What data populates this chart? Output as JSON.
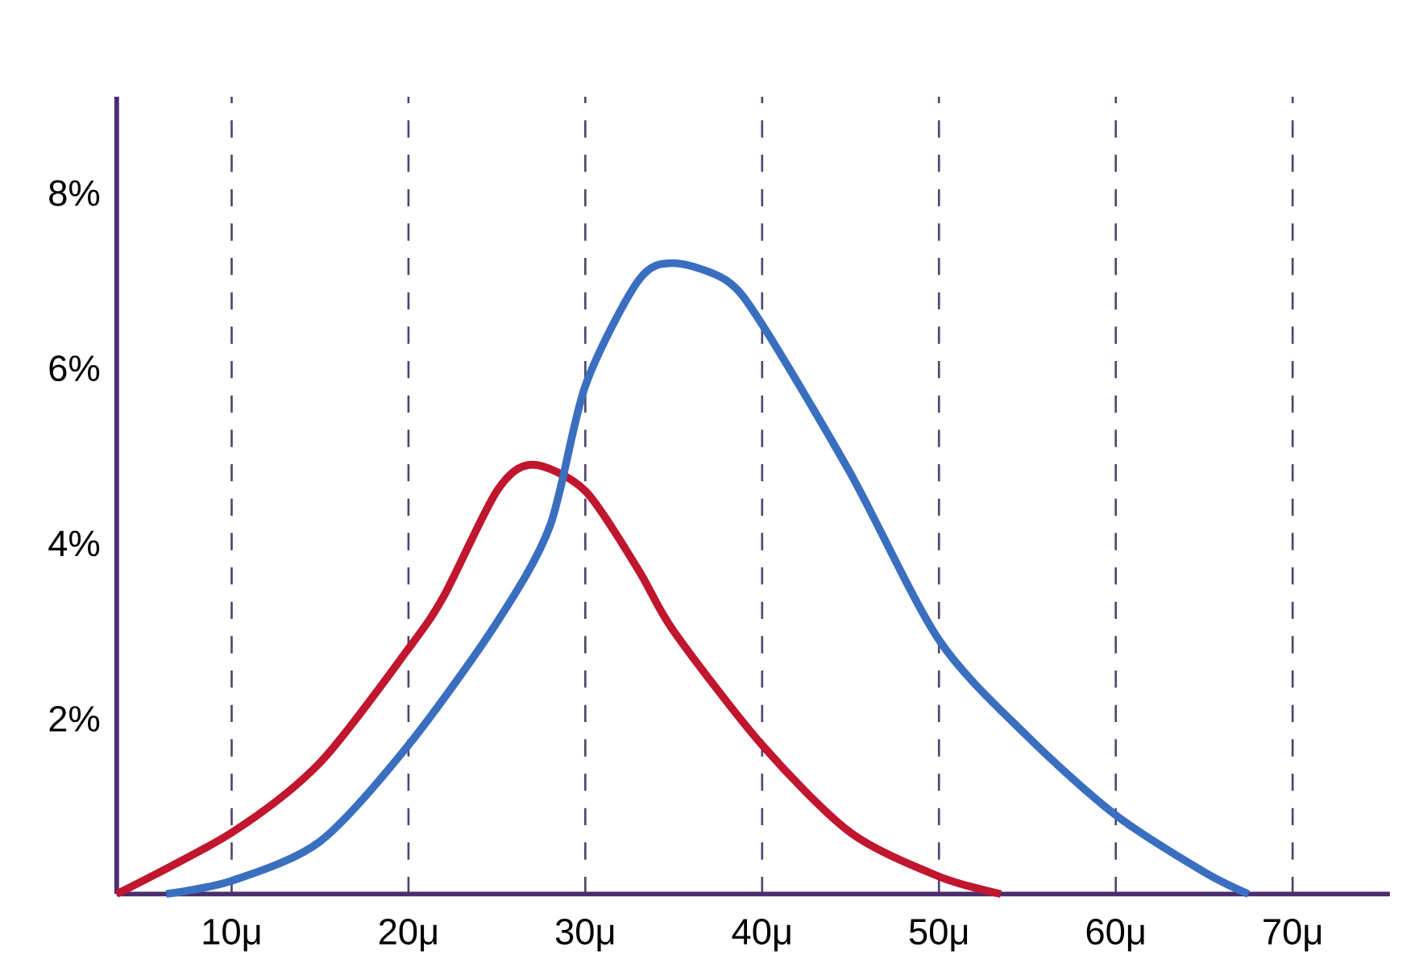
{
  "chart_data": {
    "type": "line",
    "series": [
      {
        "color": "#c0162e",
        "x": [
          3.5,
          10,
          15,
          20,
          22,
          25,
          27,
          30,
          33,
          35,
          40,
          45,
          50,
          53.5
        ],
        "values": [
          0,
          0.7,
          1.5,
          2.8,
          3.4,
          4.6,
          4.9,
          4.6,
          3.7,
          3.0,
          1.7,
          0.7,
          0.2,
          0
        ]
      },
      {
        "color": "#3a6fc0",
        "x": [
          6.3,
          10,
          15,
          20,
          25,
          28,
          30,
          33,
          35,
          38,
          40,
          45,
          50,
          55,
          60,
          65,
          67.5
        ],
        "values": [
          0,
          0.15,
          0.6,
          1.7,
          3.1,
          4.2,
          5.8,
          7.0,
          7.2,
          7.0,
          6.5,
          4.8,
          2.9,
          1.8,
          0.9,
          0.25,
          0
        ]
      }
    ],
    "xlim": [
      3.5,
      75.5
    ],
    "ylim": [
      0,
      9.1
    ],
    "xticks": [
      {
        "value": 10,
        "label": "10μ"
      },
      {
        "value": 20,
        "label": "20μ"
      },
      {
        "value": 30,
        "label": "30μ"
      },
      {
        "value": 40,
        "label": "40μ"
      },
      {
        "value": 50,
        "label": "50μ"
      },
      {
        "value": 60,
        "label": "60μ"
      },
      {
        "value": 70,
        "label": "70μ"
      }
    ],
    "yticks": [
      {
        "value": 2,
        "label": "2%"
      },
      {
        "value": 4,
        "label": "4%"
      },
      {
        "value": 6,
        "label": "6%"
      },
      {
        "value": 8,
        "label": "8%"
      }
    ],
    "grid": "x",
    "marker": "none",
    "line_style": "solid"
  }
}
